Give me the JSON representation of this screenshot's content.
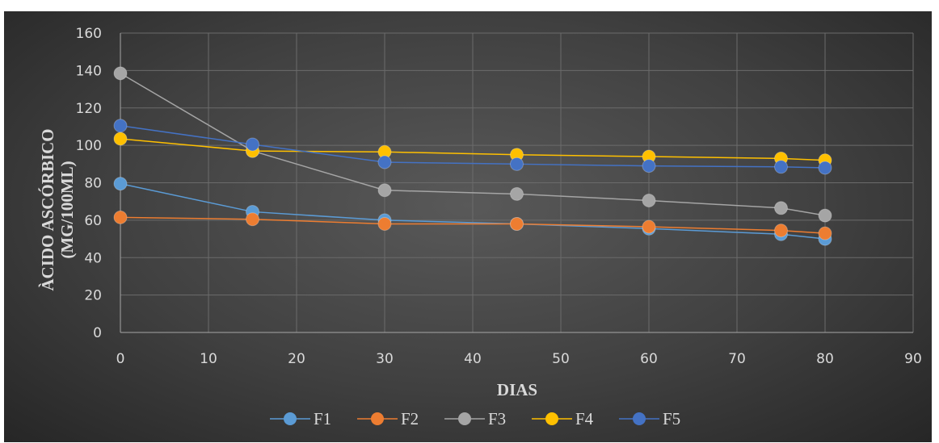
{
  "chart_data": {
    "type": "line",
    "title": "",
    "xlabel": "DIAS",
    "ylabel_lines": [
      "ÀCIDO ASCÓRBICO",
      "(MG/100ML)"
    ],
    "xlim": [
      0,
      90
    ],
    "ylim": [
      0,
      160
    ],
    "x_ticks": [
      0,
      10,
      20,
      30,
      40,
      50,
      60,
      70,
      80,
      90
    ],
    "y_ticks": [
      0,
      20,
      40,
      60,
      80,
      100,
      120,
      140,
      160
    ],
    "grid": true,
    "legend_position": "bottom",
    "x": [
      0,
      15,
      30,
      45,
      60,
      75,
      80
    ],
    "series": [
      {
        "name": "F1",
        "color": "#5b9bd5",
        "values": [
          79.5,
          64.5,
          60,
          58,
          55.5,
          52.5,
          50
        ]
      },
      {
        "name": "F2",
        "color": "#ed7d31",
        "values": [
          61.5,
          60.5,
          58,
          58,
          56.5,
          54.5,
          53
        ]
      },
      {
        "name": "F3",
        "color": "#a5a5a5",
        "values": [
          138.5,
          97,
          76,
          74,
          70.5,
          66.5,
          62.5
        ]
      },
      {
        "name": "F4",
        "color": "#ffc000",
        "values": [
          103.5,
          97,
          96.5,
          95,
          94,
          93,
          92
        ]
      },
      {
        "name": "F5",
        "color": "#4472c4",
        "values": [
          110.5,
          100.5,
          91,
          90,
          89,
          88.5,
          88
        ]
      }
    ]
  }
}
